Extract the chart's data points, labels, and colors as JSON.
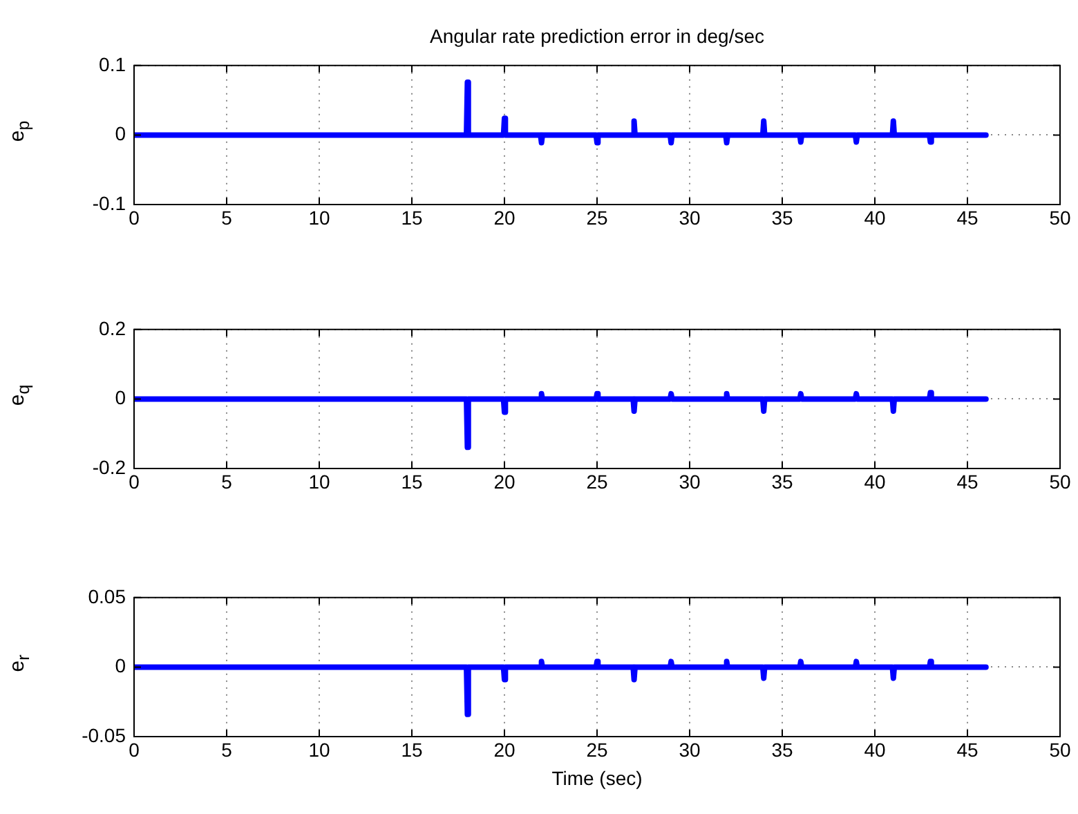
{
  "chart_data": [
    {
      "type": "line",
      "title": "Angular rate prediction error in deg/sec",
      "ylabel": "e$_{p}$",
      "grid": true,
      "xlim": [
        0,
        50
      ],
      "xticks": [
        0,
        5,
        10,
        15,
        20,
        25,
        30,
        35,
        40,
        45,
        50
      ],
      "ylim": [
        -0.1,
        0.1
      ],
      "yticks": [
        -0.1,
        0,
        0.1
      ],
      "x": [
        0,
        17.95,
        18,
        18.05,
        19.95,
        20,
        20.05,
        21.95,
        22,
        22.05,
        24.95,
        25,
        25.05,
        26.95,
        27,
        27.05,
        28.95,
        29,
        29.05,
        31.95,
        32,
        32.05,
        33.95,
        34,
        34.05,
        35.95,
        36,
        36.05,
        38.95,
        39,
        39.05,
        40.95,
        41,
        41.05,
        42.95,
        43,
        43.05,
        46
      ],
      "series": [
        {
          "color": "#0000ff",
          "values": [
            0,
            0,
            0.076,
            0,
            0,
            0.024,
            0,
            0,
            -0.011,
            0,
            0,
            -0.011,
            0,
            0,
            0.02,
            0,
            0,
            -0.011,
            0,
            0,
            -0.011,
            0,
            0,
            0.02,
            0,
            0,
            -0.01,
            0,
            0,
            -0.01,
            0,
            0,
            0.02,
            0,
            0,
            -0.01,
            0,
            0
          ]
        }
      ]
    },
    {
      "type": "line",
      "ylabel": "e$_{q}$",
      "grid": true,
      "xlim": [
        0,
        50
      ],
      "xticks": [
        0,
        5,
        10,
        15,
        20,
        25,
        30,
        35,
        40,
        45,
        50
      ],
      "ylim": [
        -0.2,
        0.2
      ],
      "yticks": [
        -0.2,
        0,
        0.2
      ],
      "x": [
        0,
        17.95,
        18,
        18.05,
        19.95,
        20,
        20.05,
        21.95,
        22,
        22.05,
        24.95,
        25,
        25.05,
        26.95,
        27,
        27.05,
        28.95,
        29,
        29.05,
        31.95,
        32,
        32.05,
        33.95,
        34,
        34.05,
        35.95,
        36,
        36.05,
        38.95,
        39,
        39.05,
        40.95,
        41,
        41.05,
        42.95,
        43,
        43.05,
        46
      ],
      "series": [
        {
          "color": "#0000ff",
          "values": [
            0,
            0,
            -0.139,
            0,
            0,
            -0.038,
            0,
            0,
            0.015,
            0,
            0,
            0.015,
            0,
            0,
            -0.035,
            0,
            0,
            0.015,
            0,
            0,
            0.015,
            0,
            0,
            -0.035,
            0,
            0,
            0.015,
            0,
            0,
            0.015,
            0,
            0,
            -0.035,
            0,
            0,
            0.018,
            0,
            0
          ]
        }
      ]
    },
    {
      "type": "line",
      "ylabel": "e$_{r}$",
      "xlabel": "Time (sec)",
      "grid": true,
      "xlim": [
        0,
        50
      ],
      "xticks": [
        0,
        5,
        10,
        15,
        20,
        25,
        30,
        35,
        40,
        45,
        50
      ],
      "ylim": [
        -0.05,
        0.05
      ],
      "yticks": [
        -0.05,
        0,
        0.05
      ],
      "x": [
        0,
        17.95,
        18,
        18.05,
        19.95,
        20,
        20.05,
        21.95,
        22,
        22.05,
        24.95,
        25,
        25.05,
        26.95,
        27,
        27.05,
        28.95,
        29,
        29.05,
        31.95,
        32,
        32.05,
        33.95,
        34,
        34.05,
        35.95,
        36,
        36.05,
        38.95,
        39,
        39.05,
        40.95,
        41,
        41.05,
        42.95,
        43,
        43.05,
        46
      ],
      "series": [
        {
          "color": "#0000ff",
          "values": [
            0,
            0,
            -0.034,
            0,
            0,
            -0.009,
            0,
            0,
            0.004,
            0,
            0,
            0.004,
            0,
            0,
            -0.009,
            0,
            0,
            0.004,
            0,
            0,
            0.004,
            0,
            0,
            -0.008,
            0,
            0,
            0.004,
            0,
            0,
            0.004,
            0,
            0,
            -0.008,
            0,
            0,
            0.004,
            0,
            0
          ]
        }
      ]
    }
  ]
}
